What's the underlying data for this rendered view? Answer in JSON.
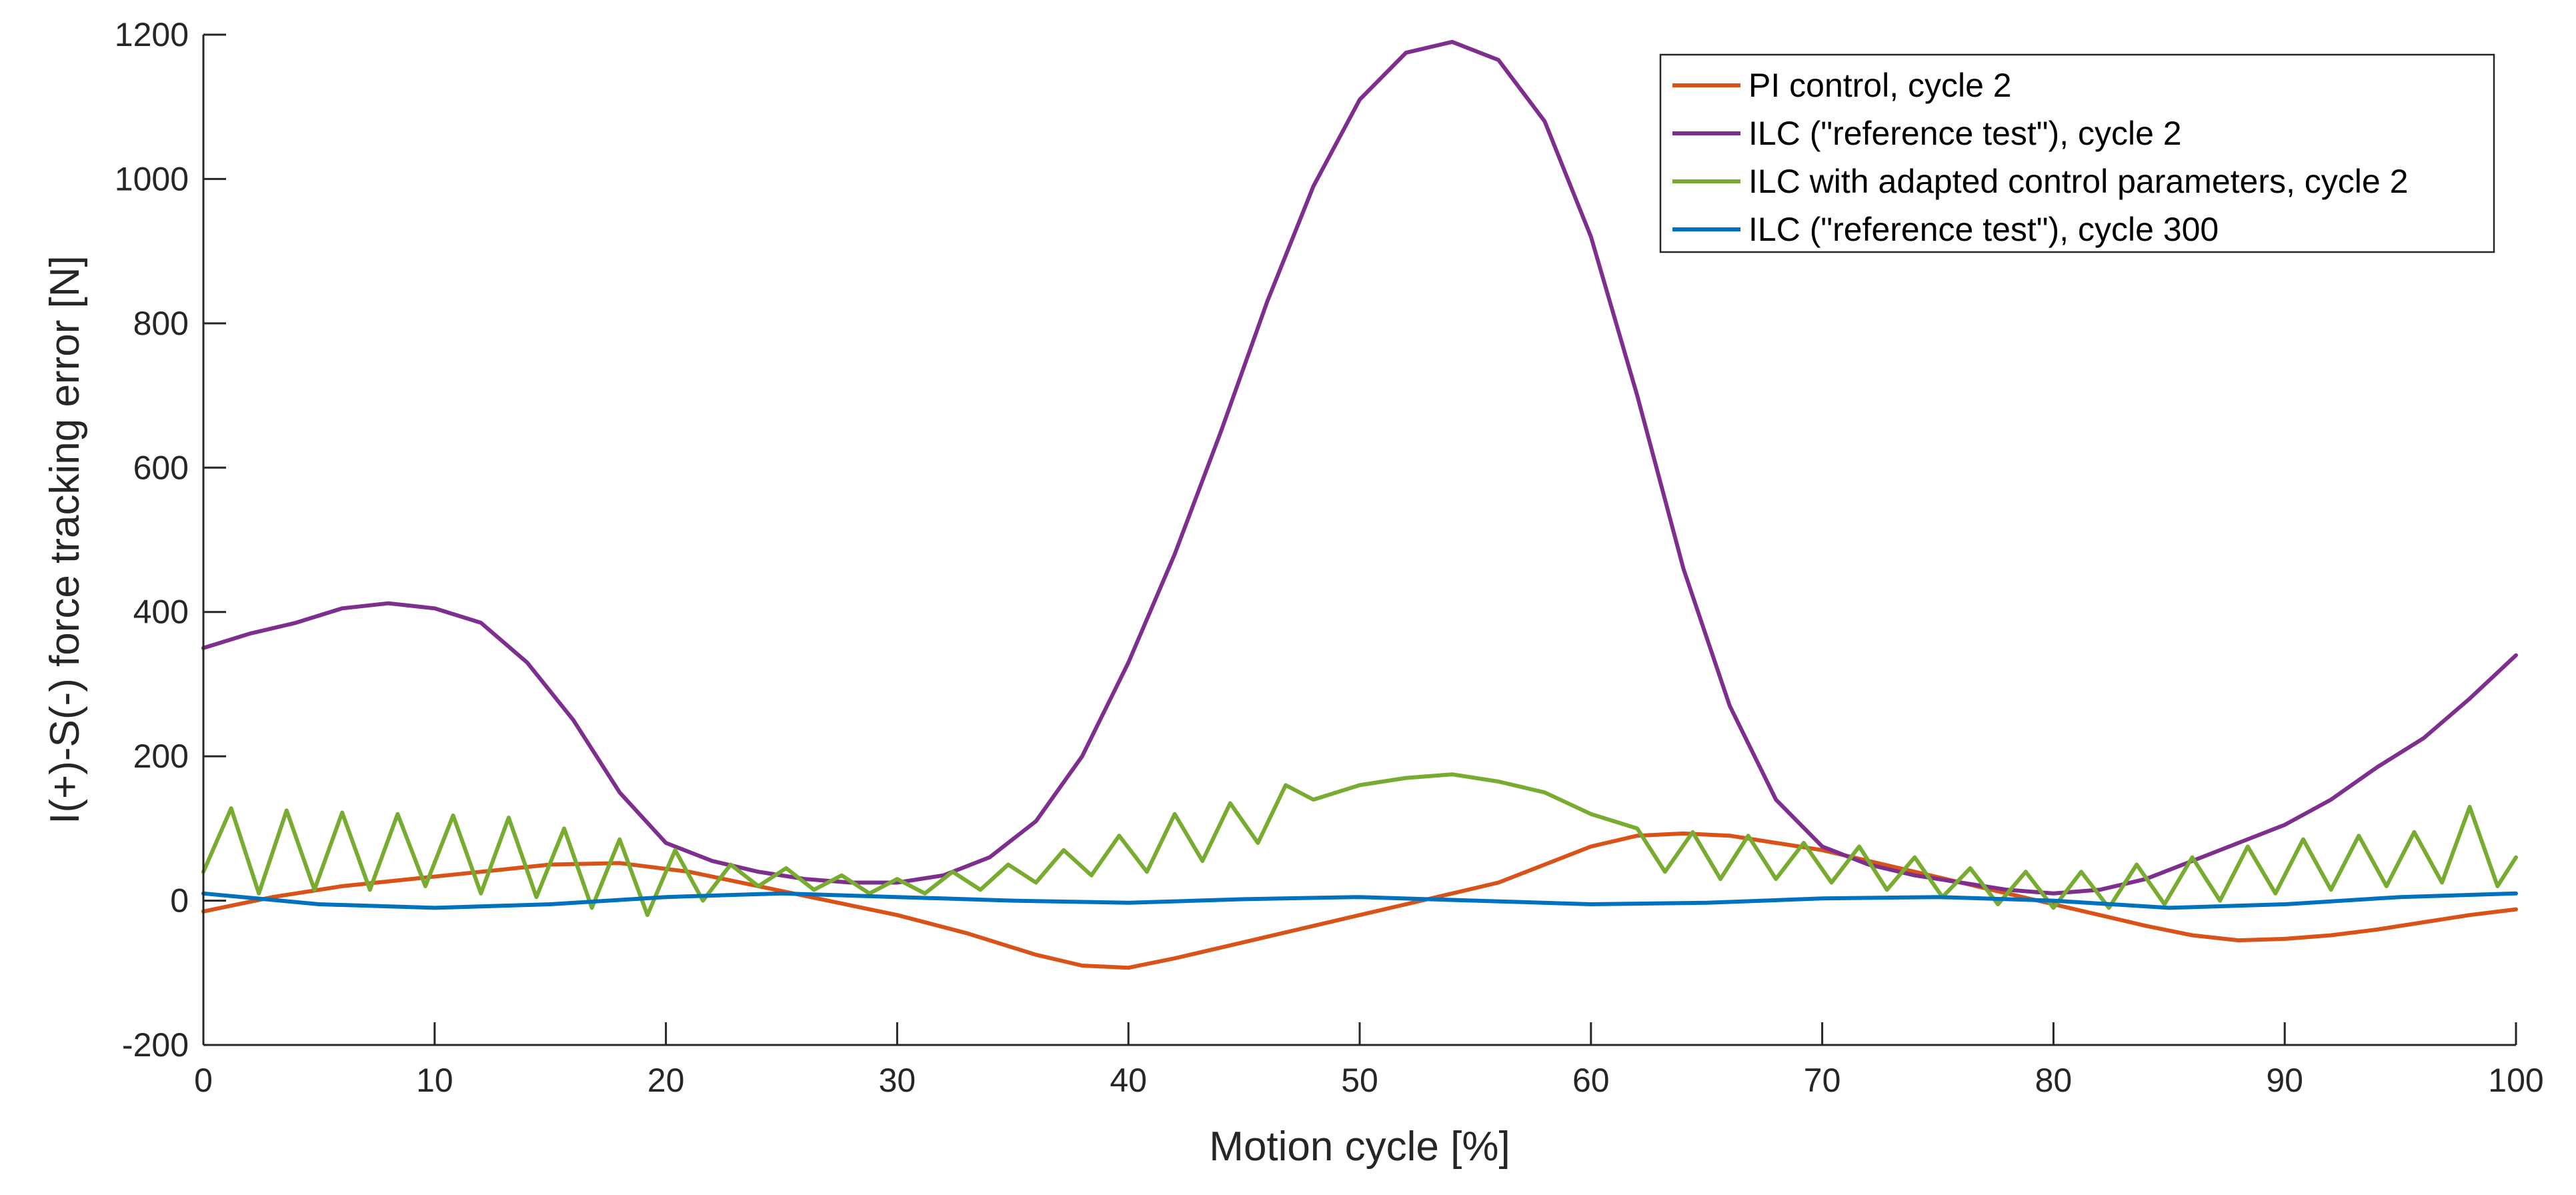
{
  "chart_data": {
    "type": "line",
    "title": "",
    "xlabel": "Motion cycle [%]",
    "ylabel": "I(+)-S(-) force tracking error [N]",
    "xlim": [
      0,
      100
    ],
    "ylim": [
      -200,
      1200
    ],
    "xticks": [
      "0",
      "10",
      "20",
      "30",
      "40",
      "50",
      "60",
      "70",
      "80",
      "90",
      "100"
    ],
    "yticks": [
      "-200",
      "0",
      "200",
      "400",
      "600",
      "800",
      "1000",
      "1200"
    ],
    "grid": false,
    "legend_position": "top-right",
    "series": [
      {
        "name": "PI control, cycle 2",
        "color": "#D95319",
        "points": [
          [
            0,
            -15
          ],
          [
            3,
            5
          ],
          [
            6,
            20
          ],
          [
            9,
            30
          ],
          [
            12,
            40
          ],
          [
            15,
            50
          ],
          [
            18,
            52
          ],
          [
            21,
            40
          ],
          [
            24,
            20
          ],
          [
            27,
            0
          ],
          [
            30,
            -20
          ],
          [
            33,
            -45
          ],
          [
            36,
            -75
          ],
          [
            38,
            -90
          ],
          [
            40,
            -93
          ],
          [
            42,
            -80
          ],
          [
            44,
            -65
          ],
          [
            46,
            -50
          ],
          [
            48,
            -35
          ],
          [
            50,
            -20
          ],
          [
            52,
            -5
          ],
          [
            54,
            10
          ],
          [
            56,
            25
          ],
          [
            58,
            50
          ],
          [
            60,
            75
          ],
          [
            62,
            90
          ],
          [
            64,
            93
          ],
          [
            66,
            90
          ],
          [
            68,
            80
          ],
          [
            70,
            70
          ],
          [
            72,
            55
          ],
          [
            74,
            40
          ],
          [
            76,
            25
          ],
          [
            78,
            10
          ],
          [
            80,
            -5
          ],
          [
            82,
            -20
          ],
          [
            84,
            -35
          ],
          [
            86,
            -48
          ],
          [
            88,
            -55
          ],
          [
            90,
            -53
          ],
          [
            92,
            -48
          ],
          [
            94,
            -40
          ],
          [
            96,
            -30
          ],
          [
            98,
            -20
          ],
          [
            100,
            -12
          ]
        ]
      },
      {
        "name": "ILC (\"reference test\"), cycle 2",
        "color": "#7E2F8E",
        "points": [
          [
            0,
            350
          ],
          [
            2,
            370
          ],
          [
            4,
            385
          ],
          [
            6,
            405
          ],
          [
            8,
            412
          ],
          [
            10,
            405
          ],
          [
            12,
            385
          ],
          [
            14,
            330
          ],
          [
            16,
            250
          ],
          [
            18,
            150
          ],
          [
            20,
            80
          ],
          [
            22,
            55
          ],
          [
            24,
            40
          ],
          [
            26,
            30
          ],
          [
            28,
            25
          ],
          [
            30,
            25
          ],
          [
            32,
            35
          ],
          [
            34,
            60
          ],
          [
            36,
            110
          ],
          [
            38,
            200
          ],
          [
            40,
            330
          ],
          [
            42,
            480
          ],
          [
            44,
            650
          ],
          [
            46,
            830
          ],
          [
            48,
            990
          ],
          [
            50,
            1110
          ],
          [
            52,
            1175
          ],
          [
            54,
            1190
          ],
          [
            56,
            1165
          ],
          [
            58,
            1080
          ],
          [
            60,
            920
          ],
          [
            62,
            700
          ],
          [
            64,
            460
          ],
          [
            66,
            270
          ],
          [
            68,
            140
          ],
          [
            70,
            75
          ],
          [
            72,
            50
          ],
          [
            74,
            35
          ],
          [
            76,
            25
          ],
          [
            78,
            15
          ],
          [
            80,
            10
          ],
          [
            82,
            15
          ],
          [
            84,
            30
          ],
          [
            86,
            55
          ],
          [
            88,
            80
          ],
          [
            90,
            105
          ],
          [
            92,
            140
          ],
          [
            94,
            185
          ],
          [
            96,
            225
          ],
          [
            98,
            280
          ],
          [
            100,
            340
          ]
        ]
      },
      {
        "name": "ILC with adapted control parameters, cycle 2",
        "color": "#77AC30",
        "points": [
          [
            0,
            40
          ],
          [
            1.2,
            128
          ],
          [
            2.4,
            10
          ],
          [
            3.6,
            125
          ],
          [
            4.8,
            15
          ],
          [
            6,
            122
          ],
          [
            7.2,
            15
          ],
          [
            8.4,
            120
          ],
          [
            9.6,
            20
          ],
          [
            10.8,
            118
          ],
          [
            12,
            10
          ],
          [
            13.2,
            115
          ],
          [
            14.4,
            5
          ],
          [
            15.6,
            100
          ],
          [
            16.8,
            -10
          ],
          [
            18,
            85
          ],
          [
            19.2,
            -20
          ],
          [
            20.4,
            70
          ],
          [
            21.6,
            0
          ],
          [
            22.8,
            50
          ],
          [
            24,
            20
          ],
          [
            25.2,
            45
          ],
          [
            26.4,
            15
          ],
          [
            27.6,
            35
          ],
          [
            28.8,
            10
          ],
          [
            30,
            30
          ],
          [
            31.2,
            10
          ],
          [
            32.4,
            40
          ],
          [
            33.6,
            15
          ],
          [
            34.8,
            50
          ],
          [
            36,
            25
          ],
          [
            37.2,
            70
          ],
          [
            38.4,
            35
          ],
          [
            39.6,
            90
          ],
          [
            40.8,
            40
          ],
          [
            42,
            120
          ],
          [
            43.2,
            55
          ],
          [
            44.4,
            135
          ],
          [
            45.6,
            80
          ],
          [
            46.8,
            160
          ],
          [
            48,
            140
          ],
          [
            50,
            160
          ],
          [
            52,
            170
          ],
          [
            54,
            175
          ],
          [
            56,
            165
          ],
          [
            58,
            150
          ],
          [
            60,
            120
          ],
          [
            62,
            100
          ],
          [
            63.2,
            40
          ],
          [
            64.4,
            95
          ],
          [
            65.6,
            30
          ],
          [
            66.8,
            90
          ],
          [
            68,
            30
          ],
          [
            69.2,
            80
          ],
          [
            70.4,
            25
          ],
          [
            71.6,
            75
          ],
          [
            72.8,
            15
          ],
          [
            74,
            60
          ],
          [
            75.2,
            5
          ],
          [
            76.4,
            45
          ],
          [
            77.6,
            -5
          ],
          [
            78.8,
            40
          ],
          [
            80,
            -10
          ],
          [
            81.2,
            40
          ],
          [
            82.4,
            -10
          ],
          [
            83.6,
            50
          ],
          [
            84.8,
            -5
          ],
          [
            86,
            60
          ],
          [
            87.2,
            0
          ],
          [
            88.4,
            75
          ],
          [
            89.6,
            10
          ],
          [
            90.8,
            85
          ],
          [
            92,
            15
          ],
          [
            93.2,
            90
          ],
          [
            94.4,
            20
          ],
          [
            95.6,
            95
          ],
          [
            96.8,
            25
          ],
          [
            98,
            130
          ],
          [
            99.2,
            20
          ],
          [
            100,
            60
          ]
        ]
      },
      {
        "name": "ILC (\"reference test\"), cycle 300",
        "color": "#0072BD",
        "points": [
          [
            0,
            10
          ],
          [
            5,
            -5
          ],
          [
            10,
            -10
          ],
          [
            15,
            -5
          ],
          [
            20,
            5
          ],
          [
            25,
            10
          ],
          [
            30,
            5
          ],
          [
            35,
            0
          ],
          [
            40,
            -3
          ],
          [
            45,
            2
          ],
          [
            50,
            5
          ],
          [
            55,
            0
          ],
          [
            60,
            -5
          ],
          [
            65,
            -3
          ],
          [
            70,
            3
          ],
          [
            75,
            5
          ],
          [
            80,
            0
          ],
          [
            85,
            -10
          ],
          [
            90,
            -5
          ],
          [
            95,
            5
          ],
          [
            100,
            10
          ]
        ]
      }
    ]
  }
}
